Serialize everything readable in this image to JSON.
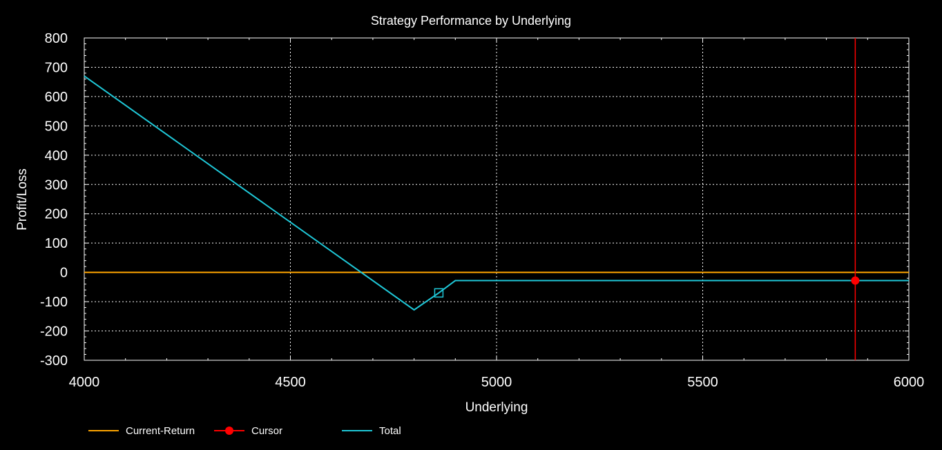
{
  "chart_data": {
    "type": "line",
    "title": "Strategy Performance by Underlying",
    "xlabel": "Underlying",
    "ylabel": "Profit/Loss",
    "xlim": [
      4000,
      6000
    ],
    "ylim": [
      -300,
      800
    ],
    "x_ticks": [
      4000,
      4500,
      5000,
      5500,
      6000
    ],
    "y_ticks": [
      -300,
      -200,
      -100,
      0,
      100,
      200,
      300,
      400,
      500,
      600,
      700,
      800
    ],
    "grid": true,
    "legend_position": "bottom-left",
    "series": [
      {
        "name": "Current-Return",
        "color": "#FFA500",
        "points": [
          [
            4000,
            0
          ],
          [
            6000,
            0
          ]
        ]
      },
      {
        "name": "Total",
        "color": "#1FC8D8",
        "points": [
          [
            4000,
            670
          ],
          [
            4800,
            -128
          ],
          [
            4860,
            -70
          ],
          [
            4900,
            -28
          ],
          [
            6000,
            -28
          ]
        ],
        "marker_point": [
          4860,
          -70
        ]
      }
    ],
    "cursor": {
      "name": "Cursor",
      "color": "#FF0000",
      "x": 5870,
      "y": -28
    }
  },
  "legend": {
    "items": [
      {
        "label": "Current-Return",
        "color": "#FFA500",
        "kind": "line"
      },
      {
        "label": "Cursor",
        "color": "#FF0000",
        "kind": "line-dot"
      },
      {
        "label": "Total",
        "color": "#1FC8D8",
        "kind": "line"
      }
    ]
  }
}
